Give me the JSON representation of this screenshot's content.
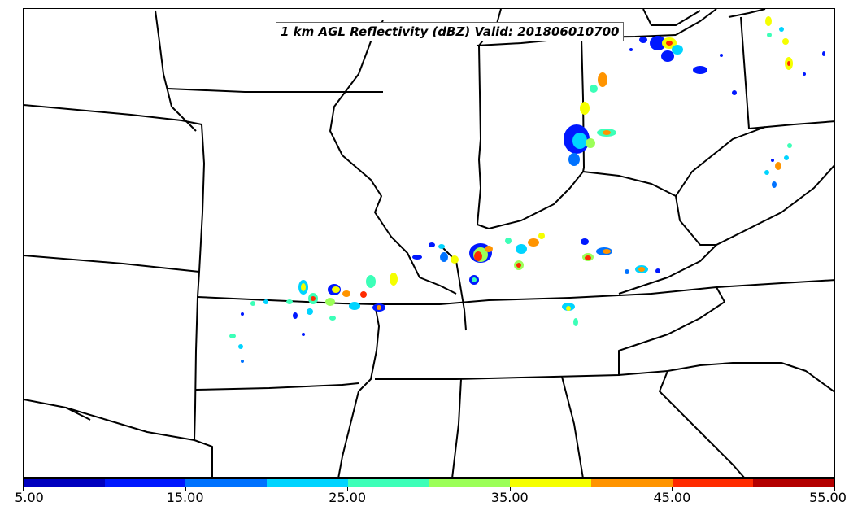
{
  "title": "1 km AGL Reflectivity (dBZ) Valid: 201806010700",
  "colorbar": {
    "labels": [
      "5.00",
      "15.00",
      "25.00",
      "35.00",
      "45.00",
      "55.00"
    ],
    "colors": [
      "#0000bf",
      "#0018ff",
      "#0072ff",
      "#00d4ff",
      "#3cffb8",
      "#9cff58",
      "#f5ff00",
      "#ff9400",
      "#ff2b00",
      "#b40000"
    ]
  }
}
